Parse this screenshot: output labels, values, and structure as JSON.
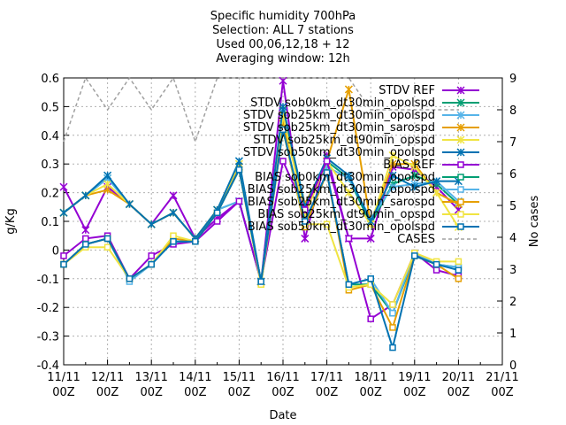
{
  "chart_data": {
    "type": "line",
    "title_lines": [
      "Specific humidity 700hPa",
      "Selection: ALL      7 stations",
      "Used 00,06,12,18 + 12",
      "Averaging window: 12h"
    ],
    "xlabel": "Date",
    "ylabel": "g/Kg",
    "y2label": "No cases",
    "ylim": [
      -0.4,
      0.6
    ],
    "y2lim": [
      0,
      9
    ],
    "yticks": [
      "-0.4",
      "-0.3",
      "-0.2",
      "-0.1",
      "0",
      "0.1",
      "0.2",
      "0.3",
      "0.4",
      "0.5",
      "0.6"
    ],
    "y2ticks": [
      "0",
      "1",
      "2",
      "3",
      "4",
      "5",
      "6",
      "7",
      "8",
      "9"
    ],
    "xticks": [
      {
        "line1": "11/11",
        "line2": "00Z"
      },
      {
        "line1": "12/11",
        "line2": "00Z"
      },
      {
        "line1": "13/11",
        "line2": "00Z"
      },
      {
        "line1": "14/11",
        "line2": "00Z"
      },
      {
        "line1": "15/11",
        "line2": "00Z"
      },
      {
        "line1": "16/11",
        "line2": "00Z"
      },
      {
        "line1": "17/11",
        "line2": "00Z"
      },
      {
        "line1": "18/11",
        "line2": "00Z"
      },
      {
        "line1": "19/11",
        "line2": "00Z"
      },
      {
        "line1": "20/11",
        "line2": "00Z"
      },
      {
        "line1": "21/11",
        "line2": "00Z"
      }
    ],
    "x_step_hours": 12,
    "grid": true,
    "legend_position": "top-right",
    "series": [
      {
        "name": "STDV REF",
        "kind": "stdv",
        "color": "#9400d3",
        "marker": "x",
        "values": [
          0.22,
          0.07,
          0.22,
          0.16,
          0.09,
          0.19,
          0.04,
          0.11,
          0.17,
          -0.11,
          0.59,
          0.04,
          0.33,
          0.04,
          0.04,
          0.29,
          0.28,
          0.22,
          0.14
        ]
      },
      {
        "name": "STDV sob0km_dt30min_opolspd",
        "kind": "stdv",
        "color": "#009e73",
        "marker": "x",
        "values": [
          0.13,
          0.19,
          0.25,
          0.16,
          0.09,
          0.13,
          0.04,
          0.14,
          0.17,
          -0.11,
          0.49,
          0.16,
          0.31,
          0.25,
          0.09,
          0.23,
          0.26,
          0.23,
          0.16
        ]
      },
      {
        "name": "STDV sob25km_dt30min_opolspd",
        "kind": "stdv",
        "color": "#56b4e9",
        "marker": "x",
        "values": [
          0.13,
          0.19,
          0.25,
          0.16,
          0.09,
          0.13,
          0.04,
          0.14,
          0.17,
          -0.11,
          0.48,
          0.16,
          0.29,
          0.25,
          0.11,
          0.22,
          0.23,
          0.24,
          0.17
        ]
      },
      {
        "name": "STDV sob25km_dt30min_sarospd",
        "kind": "stdv",
        "color": "#e69f00",
        "marker": "x",
        "values": [
          0.13,
          0.19,
          0.21,
          0.16,
          0.09,
          0.13,
          0.04,
          0.14,
          0.29,
          -0.11,
          0.44,
          0.16,
          0.31,
          0.56,
          0.09,
          0.3,
          0.3,
          0.2,
          0.16
        ]
      },
      {
        "name": "STDV sob25km_dt90min_opspd",
        "kind": "stdv",
        "color": "#f0e442",
        "marker": "x",
        "values": [
          0.13,
          0.19,
          0.23,
          0.16,
          0.09,
          0.13,
          0.04,
          0.14,
          0.3,
          -0.11,
          0.47,
          0.12,
          0.31,
          0.2,
          0.09,
          0.33,
          0.29,
          0.2,
          0.08
        ]
      },
      {
        "name": "STDV sob50km_dt30min_opolspd",
        "kind": "stdv",
        "color": "#0072b2",
        "marker": "x",
        "values": [
          0.13,
          0.19,
          0.26,
          0.16,
          0.09,
          0.13,
          0.04,
          0.14,
          0.31,
          -0.11,
          0.5,
          0.15,
          0.32,
          0.26,
          0.1,
          0.26,
          0.22,
          0.24,
          0.24
        ]
      },
      {
        "name": "BIAS REF",
        "kind": "bias",
        "color": "#9400d3",
        "marker": "square",
        "values": [
          -0.02,
          0.04,
          0.05,
          -0.1,
          -0.02,
          0.02,
          0.03,
          0.1,
          0.17,
          -0.11,
          0.31,
          0.14,
          0.31,
          0.04,
          -0.24,
          -0.19,
          -0.01,
          -0.07,
          -0.09
        ]
      },
      {
        "name": "BIAS sob0km_dt30min_opolspd",
        "kind": "bias",
        "color": "#009e73",
        "marker": "square",
        "values": [
          -0.05,
          0.02,
          0.04,
          -0.1,
          -0.05,
          0.03,
          0.03,
          0.13,
          0.28,
          -0.11,
          0.42,
          0.08,
          0.27,
          -0.12,
          -0.12,
          -0.22,
          -0.02,
          -0.05,
          -0.06
        ]
      },
      {
        "name": "BIAS sob25km_dt30min_opolspd",
        "kind": "bias",
        "color": "#56b4e9",
        "marker": "square",
        "values": [
          -0.05,
          0.02,
          0.04,
          -0.11,
          -0.05,
          0.03,
          0.03,
          0.13,
          0.28,
          -0.11,
          0.42,
          0.09,
          0.27,
          -0.12,
          -0.1,
          -0.22,
          -0.01,
          -0.05,
          -0.06
        ]
      },
      {
        "name": "BIAS sob25km_dt30min_sarospd",
        "kind": "bias",
        "color": "#e69f00",
        "marker": "square",
        "values": [
          -0.05,
          0.02,
          0.04,
          -0.1,
          -0.05,
          0.04,
          0.03,
          0.13,
          0.28,
          -0.12,
          0.42,
          0.08,
          0.27,
          -0.14,
          -0.12,
          -0.27,
          -0.02,
          -0.05,
          -0.1
        ]
      },
      {
        "name": "BIAS sob25km_dt90min_opspd",
        "kind": "bias",
        "color": "#f0e442",
        "marker": "square",
        "values": [
          -0.05,
          0.01,
          0.01,
          -0.1,
          -0.05,
          0.05,
          0.03,
          0.13,
          0.28,
          -0.12,
          0.42,
          0.09,
          0.09,
          -0.13,
          -0.12,
          -0.19,
          -0.01,
          -0.04,
          -0.04
        ]
      },
      {
        "name": "BIAS sob50km_dt30min_opolspd",
        "kind": "bias",
        "color": "#0072b2",
        "marker": "square",
        "values": [
          -0.05,
          0.02,
          0.04,
          -0.1,
          -0.05,
          0.03,
          0.03,
          0.13,
          0.28,
          -0.11,
          0.42,
          0.1,
          0.27,
          -0.12,
          -0.1,
          -0.34,
          -0.02,
          -0.05,
          -0.07
        ]
      },
      {
        "name": "CASES",
        "kind": "cases",
        "color": "#a0a0a0",
        "axis": "y2",
        "values": [
          7,
          9,
          8,
          9,
          8,
          9,
          7,
          9,
          9,
          9,
          9,
          9,
          9,
          9,
          8,
          8,
          8,
          8,
          8
        ]
      }
    ]
  }
}
